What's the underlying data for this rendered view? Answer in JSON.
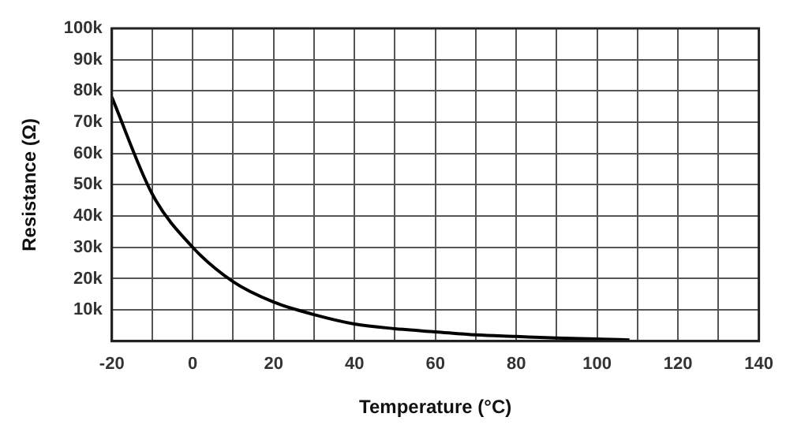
{
  "chart_data": {
    "type": "line",
    "xlabel": "Temperature (°C)",
    "ylabel": "Resistance (Ω)",
    "x": [
      -20,
      -10,
      0,
      10,
      20,
      30,
      40,
      50,
      60,
      70,
      80,
      90,
      100,
      108
    ],
    "series": [
      {
        "color": "#000000",
        "values": [
          78000,
          47000,
          30000,
          19000,
          12500,
          8500,
          5500,
          4000,
          3000,
          2000,
          1500,
          1000,
          700,
          400
        ]
      }
    ],
    "xlim": [
      -20,
      140
    ],
    "xticks": [
      -20,
      {
        "value": -10,
        "label": null
      },
      0,
      {
        "value": 10,
        "label": null
      },
      20,
      {
        "value": 30,
        "label": null
      },
      40,
      {
        "value": 50,
        "label": null
      },
      60,
      {
        "value": 70,
        "label": null
      },
      80,
      {
        "value": 90,
        "label": null
      },
      100,
      {
        "value": 110,
        "label": null
      },
      120,
      {
        "value": 130,
        "label": null
      },
      140
    ],
    "ylim": [
      0,
      100000
    ],
    "yticks": [
      {
        "value": 0,
        "label": null
      },
      {
        "value": 10000,
        "label": "10k"
      },
      {
        "value": 20000,
        "label": "20k"
      },
      {
        "value": 30000,
        "label": "30k"
      },
      {
        "value": 40000,
        "label": "40k"
      },
      {
        "value": 50000,
        "label": "50k"
      },
      {
        "value": 60000,
        "label": "60k"
      },
      {
        "value": 70000,
        "label": "70k"
      },
      {
        "value": 80000,
        "label": "80k"
      },
      {
        "value": 90000,
        "label": "90k"
      },
      {
        "value": 100000,
        "label": "100k"
      }
    ],
    "grid": true,
    "legend": false,
    "marker": "none",
    "line_style": "solid"
  }
}
